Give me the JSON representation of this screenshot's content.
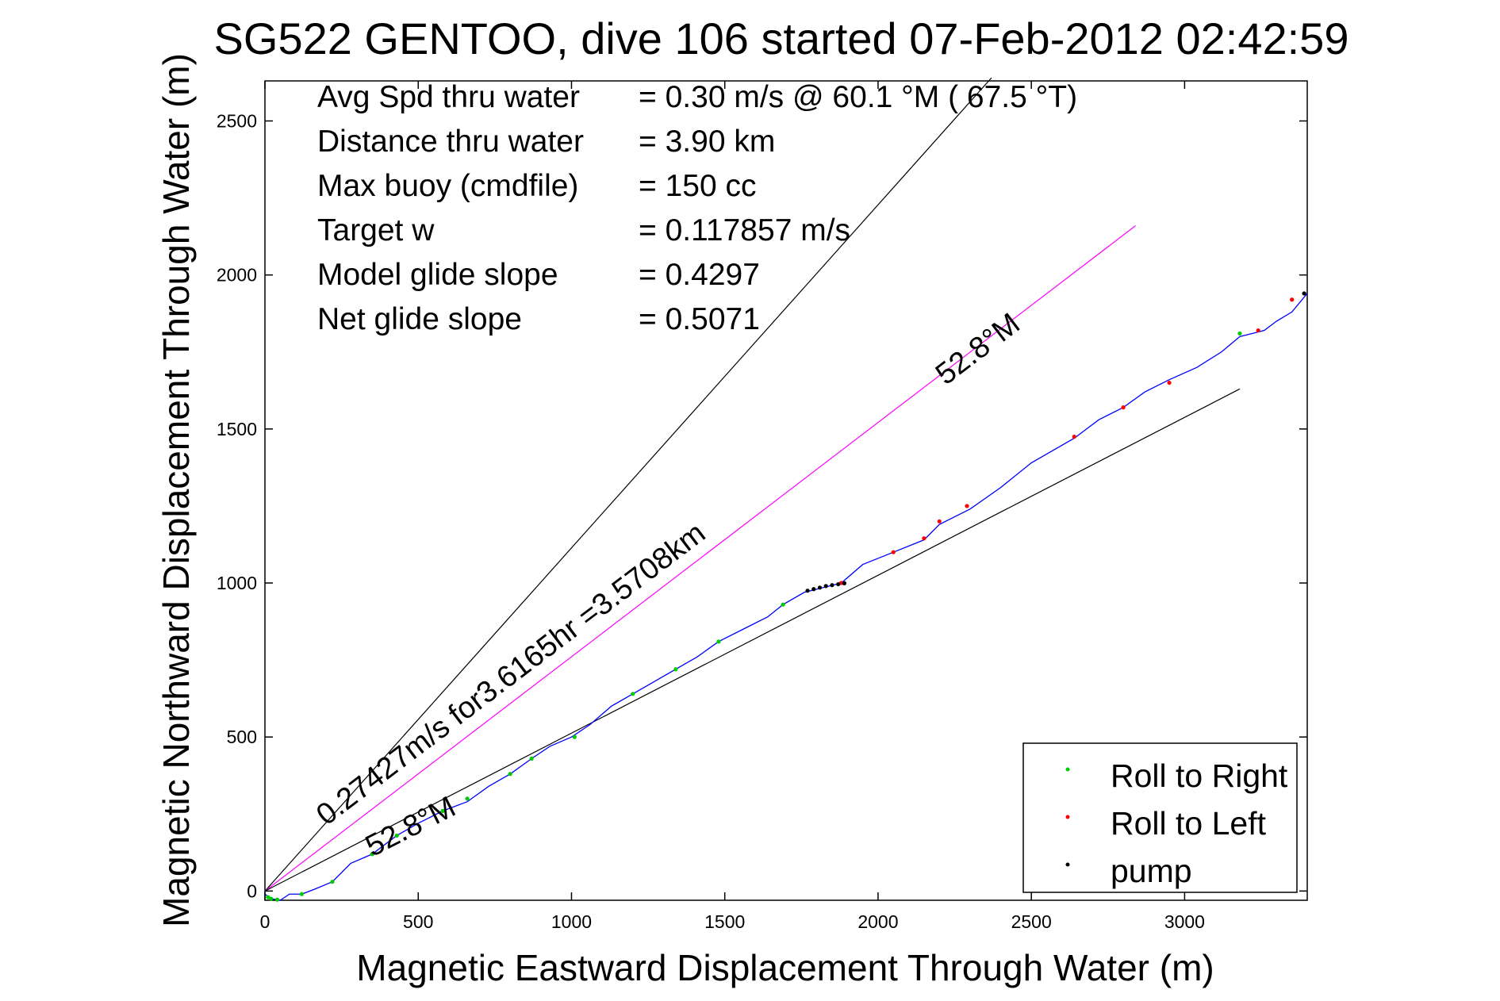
{
  "chart_data": {
    "type": "line",
    "title": "SG522 GENTOO, dive 106 started 07-Feb-2012 02:42:59",
    "xlabel": "Magnetic Eastward Displacement Through Water (m)",
    "ylabel": "Magnetic Northward Displacement Through Water (m)",
    "xlim": [
      0,
      3400
    ],
    "ylim": [
      -30,
      2630
    ],
    "xticks": [
      0,
      500,
      1000,
      1500,
      2000,
      2500,
      3000
    ],
    "yticks": [
      0,
      500,
      1000,
      1500,
      2000,
      2500
    ],
    "grid": false,
    "legend_placement": "bottom-right",
    "stats": [
      {
        "label": "Avg Spd thru water",
        "value": "=  0.30 m/s @  60.1 °M ( 67.5 °T)"
      },
      {
        "label": "Distance thru water",
        "value": "=  3.90 km"
      },
      {
        "label": "Max buoy (cmdfile)",
        "value": "= 150 cc"
      },
      {
        "label": "Target w",
        "value": "= 0.117857 m/s"
      },
      {
        "label": "Model glide slope",
        "value": "= 0.4297"
      },
      {
        "label": "Net glide slope",
        "value": "= 0.5071"
      }
    ],
    "annotations": [
      {
        "text": "0.27427m/s for3.6165hr =3.5708km",
        "x": 200,
        "y": 210,
        "angle_deg": 37.2
      },
      {
        "text": "52.8°M",
        "x": 2220,
        "y": 1640,
        "angle_deg": 37.2
      },
      {
        "text": "52.8°M",
        "x": 350,
        "y": 110,
        "angle_deg": 27
      }
    ],
    "reference_lines": [
      {
        "name": "upper-bound",
        "color": "#000000",
        "points": [
          [
            0,
            0
          ],
          [
            2370,
            2640
          ]
        ]
      },
      {
        "name": "course-line",
        "color": "#ff00ff",
        "points": [
          [
            0,
            0
          ],
          [
            2840,
            2160
          ]
        ]
      },
      {
        "name": "lower-bound",
        "color": "#000000",
        "points": [
          [
            0,
            0
          ],
          [
            3180,
            1630
          ]
        ]
      }
    ],
    "series": [
      {
        "name": "",
        "color": "#0000ff",
        "x": [
          0,
          20,
          50,
          80,
          120,
          160,
          220,
          280,
          350,
          430,
          500,
          580,
          660,
          730,
          800,
          870,
          930,
          1000,
          1060,
          1130,
          1200,
          1270,
          1340,
          1410,
          1480,
          1560,
          1640,
          1690,
          1760,
          1820,
          1880,
          1950,
          2050,
          2150,
          2200,
          2300,
          2400,
          2500,
          2640,
          2720,
          2800,
          2870,
          2950,
          3040,
          3120,
          3180,
          3220,
          3260,
          3300,
          3350,
          3400
        ],
        "y": [
          -10,
          -25,
          -30,
          -10,
          -10,
          5,
          30,
          90,
          120,
          180,
          220,
          260,
          290,
          340,
          380,
          430,
          470,
          500,
          540,
          600,
          640,
          680,
          720,
          760,
          810,
          850,
          890,
          930,
          970,
          985,
          1000,
          1060,
          1100,
          1140,
          1190,
          1240,
          1310,
          1390,
          1470,
          1530,
          1570,
          1620,
          1660,
          1700,
          1750,
          1800,
          1810,
          1820,
          1850,
          1880,
          1940
        ]
      }
    ],
    "markers": {
      "roll_to_right": {
        "name": "Roll to Right",
        "color": "#00cc00",
        "x": [
          10,
          20,
          40,
          120,
          220,
          350,
          430,
          580,
          660,
          800,
          870,
          1010,
          1200,
          1340,
          1480,
          1690,
          3180,
          3390
        ],
        "y": [
          -20,
          -25,
          -28,
          -10,
          30,
          120,
          180,
          260,
          300,
          380,
          430,
          500,
          640,
          720,
          810,
          930,
          1810,
          1940
        ]
      },
      "roll_to_left": {
        "name": "Roll to Left",
        "color": "#ff0000",
        "x": [
          1880,
          2050,
          2150,
          2200,
          2290,
          2640,
          2800,
          2950,
          3240,
          3350
        ],
        "y": [
          1000,
          1100,
          1145,
          1200,
          1250,
          1475,
          1570,
          1650,
          1820,
          1920
        ]
      },
      "pump": {
        "name": "pump",
        "color": "#000000",
        "x": [
          1770,
          1790,
          1810,
          1830,
          1850,
          1870,
          1890,
          3390
        ],
        "y": [
          975,
          980,
          985,
          990,
          993,
          996,
          999,
          1940
        ]
      }
    }
  }
}
